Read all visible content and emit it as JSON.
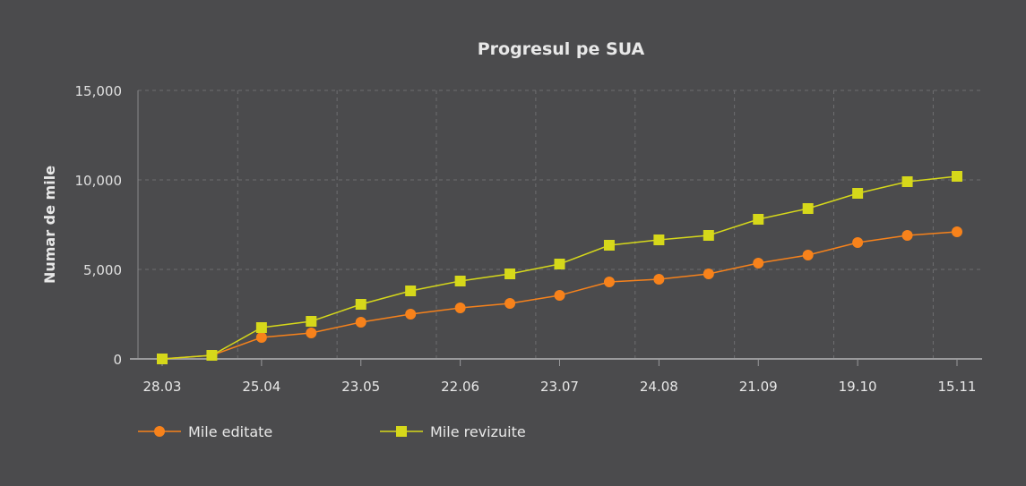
{
  "chart_data": {
    "type": "line",
    "title": "Progresul pe SUA",
    "xlabel": "",
    "ylabel": "Numar de mile",
    "ylim": [
      0,
      15000
    ],
    "yticks": [
      0,
      5000,
      10000,
      15000
    ],
    "ytick_labels": [
      "0",
      "5,000",
      "10,000",
      "15,000"
    ],
    "x_tick_labels": [
      "28.03",
      "",
      "25.04",
      "",
      "23.05",
      "",
      "22.06",
      "",
      "23.07",
      "",
      "24.08",
      "",
      "21.09",
      "",
      "19.10",
      "",
      "15.11"
    ],
    "grid": true,
    "legend": "bottom-left",
    "series": [
      {
        "name": "Mile editate",
        "color": "#f7821b",
        "marker": "circle",
        "values": [
          0,
          200,
          1200,
          1450,
          2050,
          2500,
          2850,
          3100,
          3550,
          4300,
          4450,
          4750,
          5350,
          5800,
          6500,
          6900,
          7100
        ]
      },
      {
        "name": "Mile revizuite",
        "color": "#d6d81a",
        "marker": "square",
        "values": [
          0,
          200,
          1750,
          2100,
          3050,
          3800,
          4350,
          4750,
          5300,
          6350,
          6650,
          6900,
          7800,
          8400,
          9250,
          9900,
          10200
        ]
      }
    ]
  }
}
